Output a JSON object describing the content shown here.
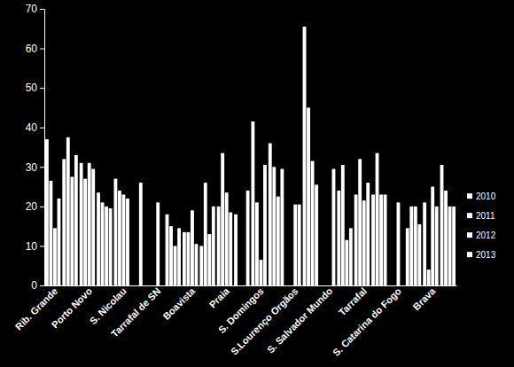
{
  "chart_data": {
    "type": "bar",
    "categories": [
      "Rib. Grande",
      null,
      "Porto Novo",
      null,
      "S. Nicolau",
      null,
      "Tarrafal de SN",
      null,
      "Boavista",
      null,
      "Praia",
      null,
      "S. Domingos",
      null,
      "S.Lourenço Orgãos",
      null,
      "S. Salvador Mundo",
      null,
      "Tarrafal",
      null,
      "S. Catarina do Fogo",
      null,
      "Brava",
      null
    ],
    "series": [
      {
        "name": "2010",
        "color": "#ffffff",
        "values": [
          37,
          32,
          31,
          23.5,
          27,
          null,
          null,
          18,
          13.5,
          10,
          20,
          18,
          41.5,
          36,
          null,
          65.5,
          null,
          24,
          23,
          23,
          null,
          14.5,
          21,
          30.5
        ]
      },
      {
        "name": "2011",
        "color": "#ffffff",
        "values": [
          26.5,
          37.5,
          27,
          21,
          24,
          null,
          null,
          15,
          13.5,
          26,
          33.5,
          null,
          21,
          30,
          null,
          45,
          null,
          30.5,
          32,
          33.5,
          null,
          20,
          4,
          24
        ]
      },
      {
        "name": "2012",
        "color": "#ffffff",
        "values": [
          14.5,
          27.5,
          31,
          20,
          23,
          26,
          21,
          10,
          19,
          13,
          23.5,
          null,
          6.5,
          22.5,
          20.5,
          31.5,
          null,
          11.5,
          21.5,
          23,
          21,
          20,
          25,
          20
        ]
      },
      {
        "name": "2013",
        "color": "#ffffff",
        "values": [
          22,
          33,
          29.5,
          19.5,
          22,
          null,
          null,
          14.5,
          10.5,
          20,
          18.5,
          24,
          30.5,
          29.5,
          20.5,
          25.5,
          29.5,
          14.5,
          26,
          23,
          null,
          15.5,
          20,
          20
        ]
      }
    ],
    "ylim": [
      0,
      70
    ],
    "yticks": [
      0,
      10,
      20,
      30,
      40,
      50,
      60,
      70
    ],
    "grid": false,
    "legend": "right"
  }
}
